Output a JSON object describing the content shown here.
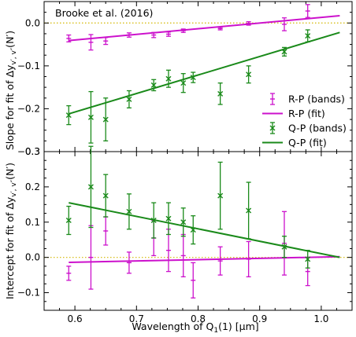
{
  "chart_data": [
    {
      "type": "scatter",
      "annotation": "Brooke et al. (2016)",
      "ylabel": "Slope for fit of Δy_{v′,v″}(N′)",
      "ylabel_main": "Slope for fit of Δy",
      "ylabel_sub": "v′, v″",
      "ylabel_tail": "(N′)",
      "xlim": [
        0.55,
        1.05
      ],
      "ylim": [
        -0.3,
        0.05
      ],
      "yticks": [
        0.0,
        -0.1,
        -0.2,
        -0.3
      ],
      "ytick_labels": [
        "0.0",
        "−0.1",
        "−0.2",
        "−0.3"
      ],
      "reference_line": 0.0,
      "series": [
        {
          "name": "R-P (bands)",
          "kind": "errorbar",
          "marker": "+",
          "color": "#cc11cc",
          "x": [
            0.59,
            0.626,
            0.65,
            0.688,
            0.728,
            0.752,
            0.776,
            0.836,
            0.882,
            0.94,
            0.978
          ],
          "y": [
            -0.036,
            -0.045,
            -0.042,
            -0.028,
            -0.028,
            -0.026,
            -0.018,
            -0.013,
            -0.001,
            -0.003,
            0.028
          ],
          "err": [
            0.008,
            0.018,
            0.008,
            0.005,
            0.006,
            0.005,
            0.004,
            0.003,
            0.004,
            0.015,
            0.015
          ]
        },
        {
          "name": "R-P (fit)",
          "kind": "line",
          "color": "#cc11cc",
          "x": [
            0.59,
            1.03
          ],
          "y": [
            -0.041,
            0.017
          ]
        },
        {
          "name": "Q-P (bands)",
          "kind": "errorbar",
          "marker": "x",
          "color": "#1a8a1a",
          "x": [
            0.59,
            0.626,
            0.65,
            0.688,
            0.728,
            0.752,
            0.776,
            0.792,
            0.836,
            0.882,
            0.94,
            0.978
          ],
          "y": [
            -0.215,
            -0.22,
            -0.225,
            -0.178,
            -0.145,
            -0.13,
            -0.14,
            -0.127,
            -0.165,
            -0.12,
            -0.067,
            -0.03
          ],
          "err": [
            0.022,
            0.06,
            0.05,
            0.02,
            0.013,
            0.02,
            0.022,
            0.012,
            0.025,
            0.02,
            0.01,
            0.014
          ]
        },
        {
          "name": "Q-P (fit)",
          "kind": "line",
          "color": "#1a8a1a",
          "x": [
            0.59,
            1.03
          ],
          "y": [
            -0.212,
            -0.022
          ]
        }
      ]
    },
    {
      "type": "scatter",
      "ylabel": "Intercept for fit of Δy_{v′,v″}(N′)",
      "ylabel_main": "Intercept for fit of Δy",
      "ylabel_sub": "v′, v″",
      "ylabel_tail": "(N′)",
      "xlabel": "Wavelength of Q₁(1) [μm]",
      "xlabel_main": "Wavelength of Q",
      "xlabel_sub": "1",
      "xlabel_tail": "(1) [μm]",
      "xlim": [
        0.55,
        1.05
      ],
      "ylim": [
        -0.15,
        0.3
      ],
      "xticks": [
        0.6,
        0.7,
        0.8,
        0.9,
        1.0
      ],
      "xtick_labels": [
        "0.6",
        "0.7",
        "0.8",
        "0.9",
        "1.0"
      ],
      "yticks": [
        -0.1,
        0.0,
        0.1,
        0.2,
        0.3
      ],
      "ytick_labels": [
        "−0.1",
        "0.0",
        "0.1",
        "0.2",
        "0.3"
      ],
      "reference_line": 0.0,
      "series": [
        {
          "name": "R-P (bands)",
          "kind": "errorbar",
          "marker": "+",
          "color": "#cc11cc",
          "x": [
            0.59,
            0.626,
            0.65,
            0.688,
            0.728,
            0.752,
            0.776,
            0.792,
            0.836,
            0.882,
            0.94,
            0.978
          ],
          "y": [
            -0.045,
            0.0,
            0.075,
            -0.015,
            0.055,
            0.02,
            0.005,
            -0.065,
            -0.01,
            -0.005,
            0.04,
            -0.04
          ],
          "err": [
            0.02,
            0.09,
            0.04,
            0.03,
            0.05,
            0.06,
            0.06,
            0.05,
            0.04,
            0.05,
            0.09,
            0.04
          ]
        },
        {
          "name": "R-P (fit)",
          "kind": "line",
          "color": "#cc11cc",
          "x": [
            0.59,
            1.03
          ],
          "y": [
            -0.014,
            0.002
          ]
        },
        {
          "name": "Q-P (bands)",
          "kind": "errorbar",
          "marker": "x",
          "color": "#1a8a1a",
          "x": [
            0.59,
            0.626,
            0.65,
            0.688,
            0.728,
            0.752,
            0.776,
            0.792,
            0.836,
            0.882,
            0.94,
            0.978
          ],
          "y": [
            0.105,
            0.2,
            0.175,
            0.13,
            0.105,
            0.11,
            0.1,
            0.078,
            0.175,
            0.133,
            0.03,
            -0.005
          ],
          "err": [
            0.04,
            0.115,
            0.06,
            0.05,
            0.05,
            0.045,
            0.04,
            0.04,
            0.095,
            0.08,
            0.03,
            0.025
          ]
        },
        {
          "name": "Q-P (fit)",
          "kind": "line",
          "color": "#1a8a1a",
          "x": [
            0.59,
            1.03
          ],
          "y": [
            0.155,
            0.0
          ]
        }
      ]
    }
  ],
  "legend": [
    {
      "label": "R-P (bands)",
      "kind": "errorbar",
      "marker": "+",
      "color": "#cc11cc"
    },
    {
      "label": "R-P (fit)",
      "kind": "line",
      "color": "#cc11cc"
    },
    {
      "label": "Q-P (bands)",
      "kind": "errorbar",
      "marker": "x",
      "color": "#1a8a1a"
    },
    {
      "label": "Q-P (fit)",
      "kind": "line",
      "color": "#1a8a1a"
    }
  ],
  "reference_line_color": "#d4b800"
}
